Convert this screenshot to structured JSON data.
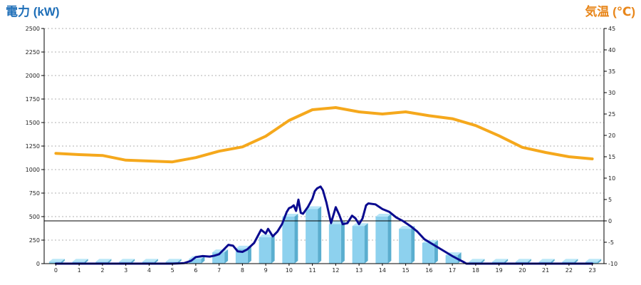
{
  "chart_data": {
    "type": "bar+line",
    "title_left": "電力 (kW)",
    "title_right": "気温 (℃)",
    "categories": [
      "0",
      "1",
      "2",
      "3",
      "4",
      "5",
      "6",
      "7",
      "8",
      "9",
      "10",
      "11",
      "12",
      "13",
      "14",
      "15",
      "16",
      "17",
      "18",
      "19",
      "20",
      "21",
      "22",
      "23"
    ],
    "y_left": {
      "min": 0,
      "max": 2500,
      "ticks": [
        "0",
        "250",
        "500",
        "750",
        "1000",
        "1250",
        "1500",
        "1750",
        "2000",
        "2250",
        "2500"
      ]
    },
    "y_right": {
      "min": -10,
      "max": 45,
      "ticks": [
        "-10",
        "-5",
        "0",
        "5",
        "10",
        "15",
        "20",
        "25",
        "30",
        "35",
        "40",
        "45"
      ]
    },
    "grid": true,
    "reference_line_temperature": 0,
    "series": [
      {
        "kind": "bar",
        "axis": "left",
        "values": [
          20,
          20,
          20,
          20,
          20,
          20,
          50,
          120,
          160,
          280,
          500,
          580,
          420,
          400,
          500,
          370,
          220,
          90,
          20,
          20,
          20,
          20,
          20,
          20
        ]
      },
      {
        "kind": "line",
        "axis": "left",
        "x": [
          0,
          1,
          2,
          3,
          4,
          5,
          5.5,
          5.8,
          6.0,
          6.3,
          6.6,
          6.8,
          7.0,
          7.2,
          7.4,
          7.6,
          7.8,
          8.0,
          8.2,
          8.5,
          8.8,
          9.0,
          9.1,
          9.3,
          9.5,
          9.7,
          9.9,
          10.0,
          10.1,
          10.2,
          10.3,
          10.4,
          10.5,
          10.6,
          10.8,
          11.0,
          11.1,
          11.2,
          11.35,
          11.45,
          11.6,
          11.8,
          12.0,
          12.15,
          12.3,
          12.5,
          12.7,
          12.85,
          13.0,
          13.15,
          13.3,
          13.4,
          13.7,
          14.0,
          14.3,
          14.6,
          14.9,
          15.2,
          15.5,
          15.8,
          16.2,
          16.6,
          17.0,
          17.3,
          17.5,
          17.6,
          18,
          19,
          20,
          21,
          22,
          23
        ],
        "values": [
          0,
          0,
          0,
          0,
          0,
          0,
          5,
          30,
          70,
          80,
          75,
          85,
          100,
          150,
          200,
          190,
          130,
          125,
          150,
          220,
          360,
          320,
          370,
          290,
          340,
          420,
          550,
          590,
          600,
          620,
          560,
          680,
          540,
          530,
          600,
          690,
          770,
          800,
          820,
          780,
          650,
          430,
          600,
          520,
          420,
          430,
          510,
          480,
          420,
          480,
          620,
          640,
          630,
          580,
          550,
          490,
          450,
          400,
          340,
          260,
          200,
          140,
          80,
          40,
          15,
          0,
          0,
          0,
          0,
          0,
          0,
          0
        ]
      },
      {
        "kind": "line",
        "axis": "right",
        "values": [
          15.8,
          15.5,
          15.3,
          14.2,
          14.0,
          13.8,
          14.8,
          16.3,
          17.3,
          19.8,
          23.5,
          26.0,
          26.5,
          25.5,
          25.0,
          25.5,
          24.6,
          23.9,
          22.3,
          19.9,
          17.2,
          16.0,
          15.0,
          14.5
        ]
      }
    ],
    "colors": {
      "bar_face": "#8dd1ee",
      "bar_top": "#b8e6f8",
      "bar_side": "#5aaecf",
      "power_line": "#0a0a8f",
      "temp_line": "#f5a81c",
      "title_left": "#1f6fb8",
      "title_right": "#e8861a",
      "grid": "#b0b0b0",
      "axis": "#000000"
    }
  }
}
